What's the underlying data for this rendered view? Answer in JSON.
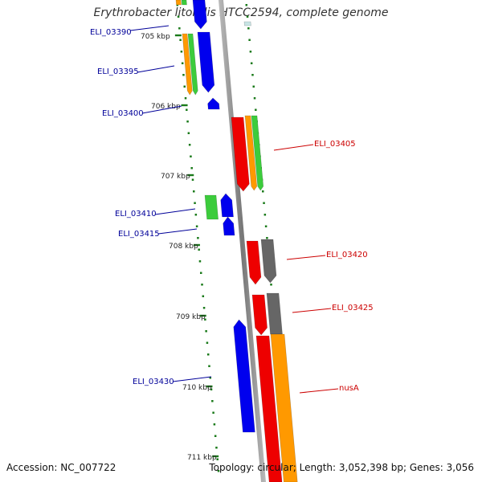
{
  "title": "Erythrobacter litoralis HTCC2594, complete genome",
  "footer": {
    "accession": "Accession: NC_007722",
    "topology": "Topology: circular; Length: 3,052,398 bp; Genes: 3,056"
  },
  "colors": {
    "backbone": "#8a8a8a",
    "blue": "#0000ee",
    "green": "#3ccc3c",
    "orange": "#ff9900",
    "red": "#ee0000",
    "gray": "#666666",
    "tick": "#1a7a1a",
    "label_left": "#000099",
    "label_right": "#cc0000"
  },
  "kbp_labels": [
    "705 kbp",
    "706 kbp",
    "707 kbp",
    "708 kbp",
    "709 kbp",
    "710 kbp",
    "711 kbp"
  ],
  "genes_left": [
    "ELI_03390",
    "ELI_03395",
    "ELI_03400",
    "ELI_03410",
    "ELI_03415",
    "ELI_03430"
  ],
  "genes_right": [
    "ELI_03405",
    "ELI_03420",
    "ELI_03425",
    "nusA"
  ]
}
